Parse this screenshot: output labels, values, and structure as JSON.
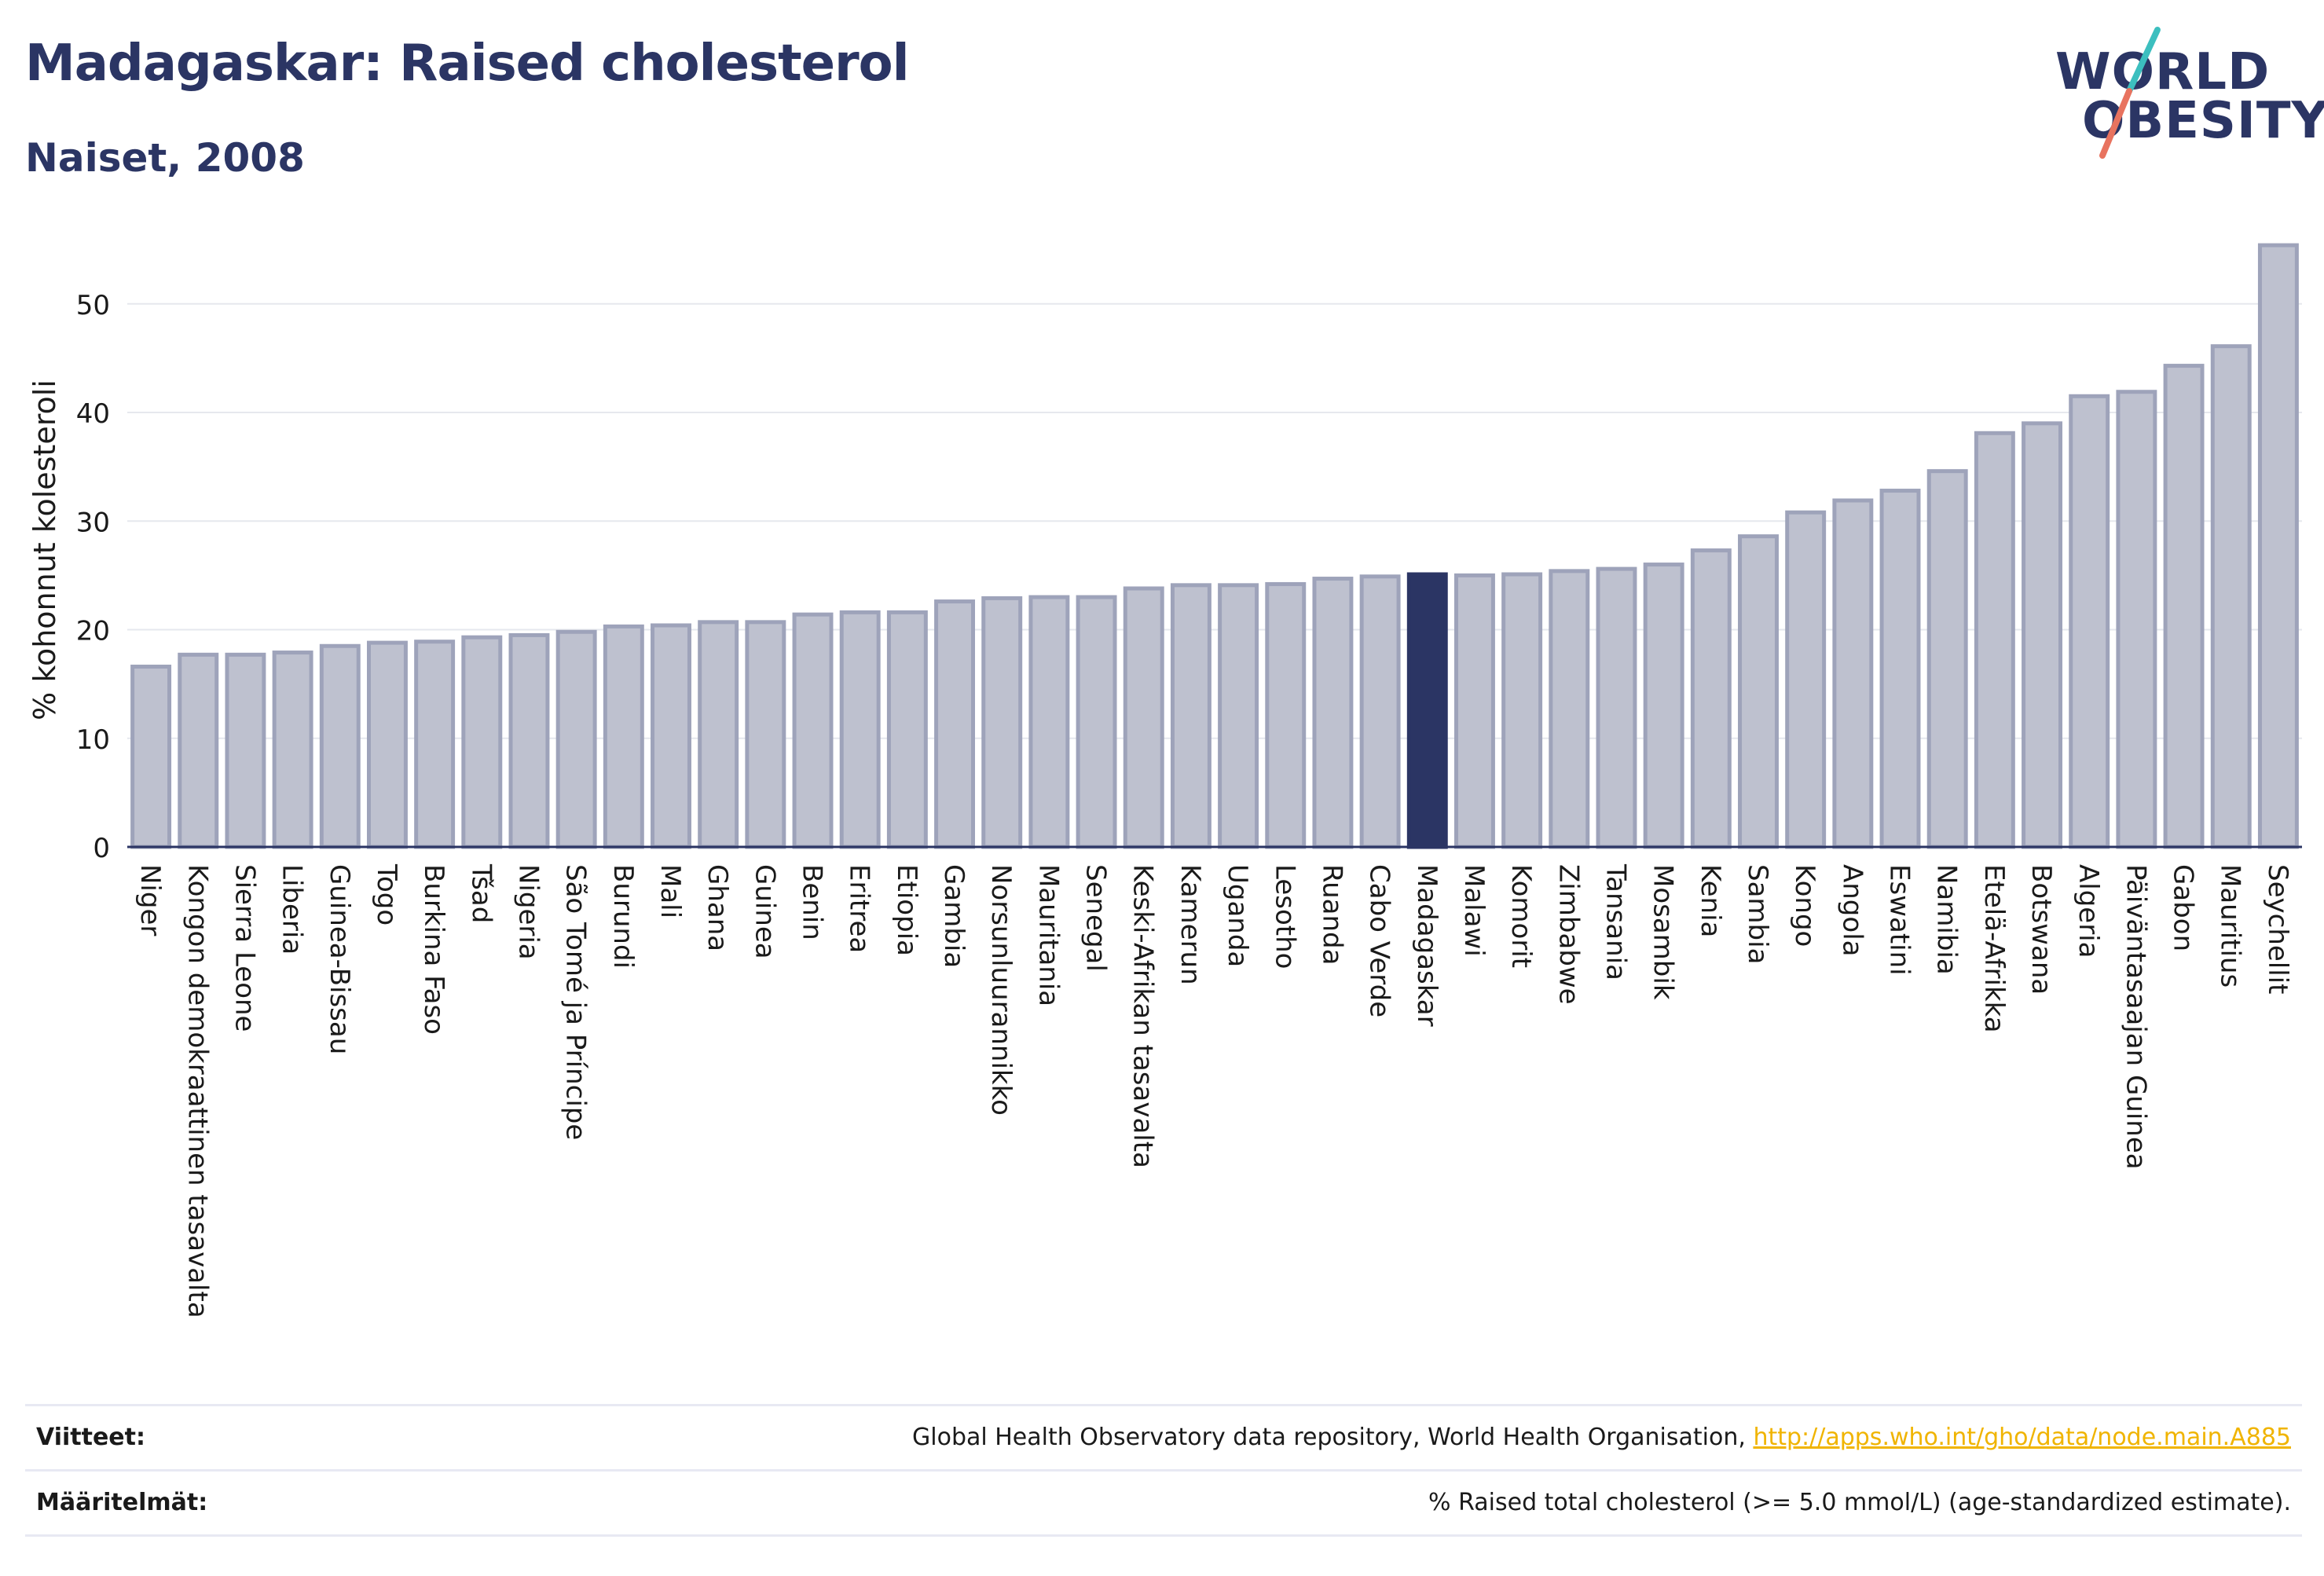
{
  "header": {
    "title": "Madagaskar: Raised cholesterol",
    "subtitle": "Naiset, 2008"
  },
  "logo": {
    "line1": "WORLD",
    "line2": "OBESITY"
  },
  "colors": {
    "bar": "#bec1cf",
    "bar_border": "#9ea3ba",
    "highlight": "#2b3564",
    "grid": "#e6e8ee",
    "axis": "#2b3564",
    "link": "#f0b400",
    "logo_slash_top": "#3cbfbf",
    "logo_slash_bottom": "#e8735f"
  },
  "chart_data": {
    "type": "bar",
    "ylabel": "% kohonnut kolesteroli",
    "xlabel": "",
    "ylim": [
      0,
      57
    ],
    "yticks": [
      0,
      10,
      20,
      30,
      40,
      50
    ],
    "grid": true,
    "highlight": "Madagaskar",
    "categories": [
      "Niger",
      "Kongon demokraattinen tasavalta",
      "Sierra Leone",
      "Liberia",
      "Guinea-Bissau",
      "Togo",
      "Burkina Faso",
      "Tšad",
      "Nigeria",
      "São Tomé ja Príncipe",
      "Burundi",
      "Mali",
      "Ghana",
      "Guinea",
      "Benin",
      "Eritrea",
      "Etiopia",
      "Gambia",
      "Norsunluurannikko",
      "Mauritania",
      "Senegal",
      "Keski-Afrikan tasavalta",
      "Kamerun",
      "Uganda",
      "Lesotho",
      "Ruanda",
      "Cabo Verde",
      "Madagaskar",
      "Malawi",
      "Komorit",
      "Zimbabwe",
      "Tansania",
      "Mosambik",
      "Kenia",
      "Sambia",
      "Kongo",
      "Angola",
      "Eswatini",
      "Namibia",
      "Etelä-Afrikka",
      "Botswana",
      "Algeria",
      "Päiväntasaajan Guinea",
      "Gabon",
      "Mauritius",
      "Seychellit"
    ],
    "values": [
      16.6,
      17.7,
      17.7,
      17.9,
      18.5,
      18.8,
      18.9,
      19.3,
      19.5,
      19.8,
      20.3,
      20.4,
      20.7,
      20.7,
      21.4,
      21.6,
      21.6,
      22.6,
      22.9,
      23.0,
      23.0,
      23.8,
      24.1,
      24.1,
      24.2,
      24.7,
      24.9,
      25.1,
      25.0,
      25.1,
      25.4,
      25.6,
      26.0,
      27.3,
      28.6,
      30.8,
      31.9,
      32.8,
      34.6,
      38.1,
      39.0,
      41.5,
      41.9,
      44.3,
      46.1,
      55.4
    ]
  },
  "references": {
    "sources_label": "Viitteet:",
    "sources_text": "Global Health Observatory data repository, World Health Organisation, ",
    "sources_link": "http://apps.who.int/gho/data/node.main.A885",
    "definitions_label": "Määritelmät:",
    "definitions_text": "% Raised total cholesterol (>= 5.0 mmol/L) (age-standardized estimate)."
  }
}
